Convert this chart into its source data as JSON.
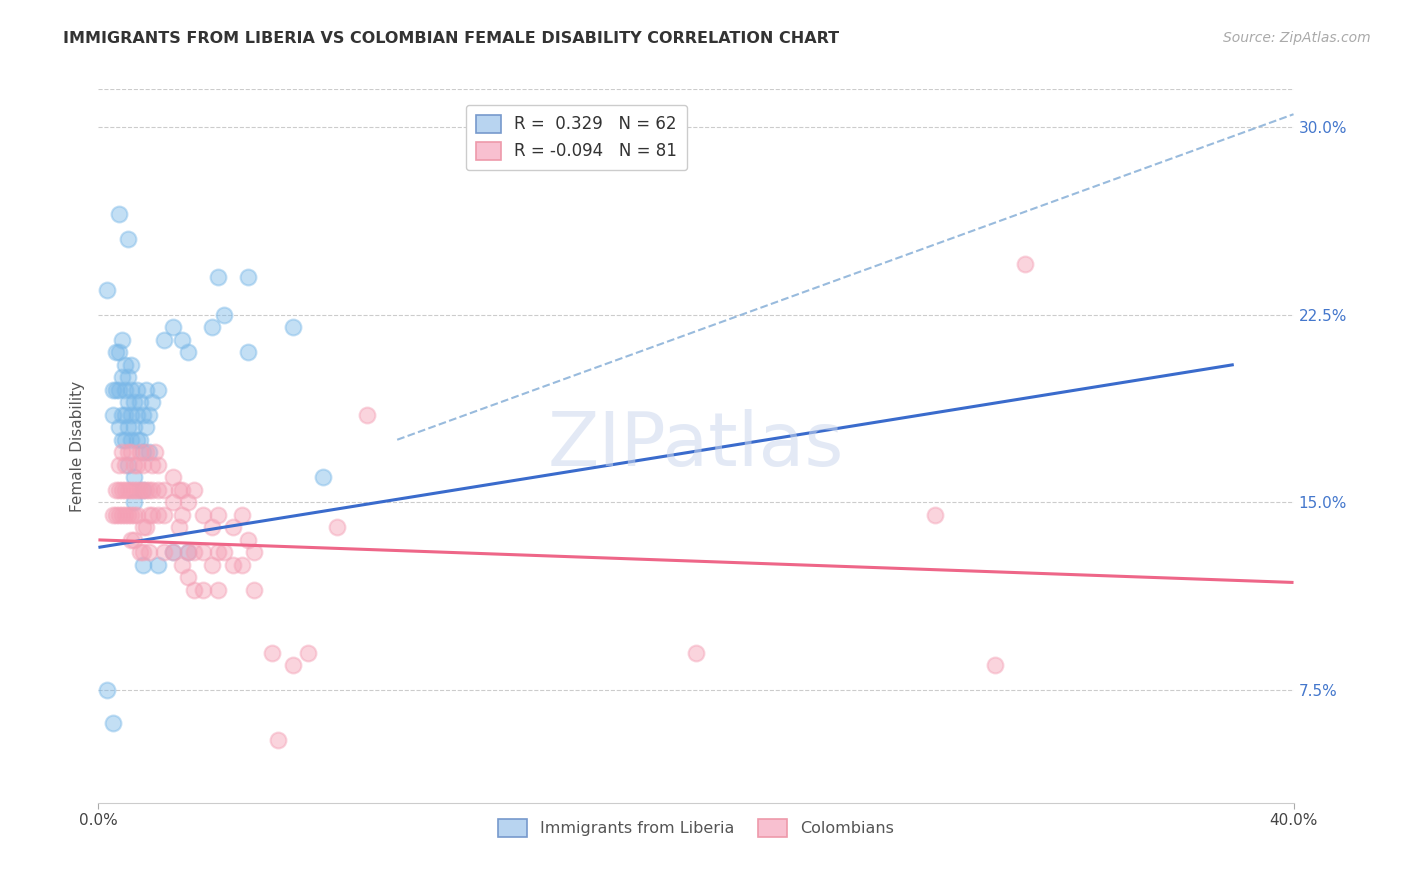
{
  "title": "IMMIGRANTS FROM LIBERIA VS COLOMBIAN FEMALE DISABILITY CORRELATION CHART",
  "source": "Source: ZipAtlas.com",
  "ylabel": "Female Disability",
  "right_yticks": [
    "30.0%",
    "22.5%",
    "15.0%",
    "7.5%"
  ],
  "right_ytick_vals": [
    0.3,
    0.225,
    0.15,
    0.075
  ],
  "xlim": [
    0.0,
    0.4
  ],
  "ylim": [
    0.03,
    0.315
  ],
  "color_blue": "#7ab8e8",
  "color_pink": "#f4a0b5",
  "trendline_blue": "#3a6bcc",
  "trendline_pink": "#ee6688",
  "trendline_dashed_color": "#99bbdd",
  "watermark": "ZIPatlas",
  "blue_trend_x": [
    0.0,
    0.38
  ],
  "blue_trend_y": [
    0.132,
    0.205
  ],
  "pink_trend_x": [
    0.0,
    0.4
  ],
  "pink_trend_y": [
    0.135,
    0.118
  ],
  "dashed_trend_x": [
    0.1,
    0.4
  ],
  "dashed_trend_y": [
    0.175,
    0.305
  ],
  "liberia_points": [
    [
      0.003,
      0.235
    ],
    [
      0.005,
      0.195
    ],
    [
      0.005,
      0.185
    ],
    [
      0.006,
      0.21
    ],
    [
      0.006,
      0.195
    ],
    [
      0.007,
      0.21
    ],
    [
      0.007,
      0.195
    ],
    [
      0.007,
      0.18
    ],
    [
      0.008,
      0.215
    ],
    [
      0.008,
      0.2
    ],
    [
      0.008,
      0.185
    ],
    [
      0.008,
      0.175
    ],
    [
      0.009,
      0.205
    ],
    [
      0.009,
      0.195
    ],
    [
      0.009,
      0.185
    ],
    [
      0.009,
      0.175
    ],
    [
      0.01,
      0.2
    ],
    [
      0.01,
      0.19
    ],
    [
      0.01,
      0.18
    ],
    [
      0.01,
      0.165
    ],
    [
      0.011,
      0.205
    ],
    [
      0.011,
      0.195
    ],
    [
      0.011,
      0.185
    ],
    [
      0.011,
      0.175
    ],
    [
      0.012,
      0.19
    ],
    [
      0.012,
      0.18
    ],
    [
      0.012,
      0.16
    ],
    [
      0.012,
      0.15
    ],
    [
      0.013,
      0.195
    ],
    [
      0.013,
      0.185
    ],
    [
      0.013,
      0.175
    ],
    [
      0.014,
      0.19
    ],
    [
      0.014,
      0.175
    ],
    [
      0.015,
      0.185
    ],
    [
      0.015,
      0.17
    ],
    [
      0.015,
      0.155
    ],
    [
      0.016,
      0.195
    ],
    [
      0.016,
      0.18
    ],
    [
      0.017,
      0.185
    ],
    [
      0.017,
      0.17
    ],
    [
      0.018,
      0.19
    ],
    [
      0.02,
      0.195
    ],
    [
      0.022,
      0.215
    ],
    [
      0.025,
      0.22
    ],
    [
      0.028,
      0.215
    ],
    [
      0.03,
      0.21
    ],
    [
      0.038,
      0.22
    ],
    [
      0.04,
      0.24
    ],
    [
      0.042,
      0.225
    ],
    [
      0.05,
      0.21
    ],
    [
      0.007,
      0.265
    ],
    [
      0.01,
      0.255
    ],
    [
      0.015,
      0.125
    ],
    [
      0.02,
      0.125
    ],
    [
      0.025,
      0.13
    ],
    [
      0.03,
      0.13
    ],
    [
      0.003,
      0.075
    ],
    [
      0.005,
      0.062
    ],
    [
      0.05,
      0.24
    ],
    [
      0.065,
      0.22
    ],
    [
      0.075,
      0.16
    ]
  ],
  "colombian_points": [
    [
      0.005,
      0.145
    ],
    [
      0.006,
      0.155
    ],
    [
      0.006,
      0.145
    ],
    [
      0.007,
      0.165
    ],
    [
      0.007,
      0.155
    ],
    [
      0.007,
      0.145
    ],
    [
      0.008,
      0.17
    ],
    [
      0.008,
      0.155
    ],
    [
      0.008,
      0.145
    ],
    [
      0.009,
      0.165
    ],
    [
      0.009,
      0.155
    ],
    [
      0.009,
      0.145
    ],
    [
      0.01,
      0.17
    ],
    [
      0.01,
      0.155
    ],
    [
      0.01,
      0.145
    ],
    [
      0.011,
      0.17
    ],
    [
      0.011,
      0.155
    ],
    [
      0.011,
      0.145
    ],
    [
      0.011,
      0.135
    ],
    [
      0.012,
      0.165
    ],
    [
      0.012,
      0.155
    ],
    [
      0.012,
      0.145
    ],
    [
      0.012,
      0.135
    ],
    [
      0.013,
      0.165
    ],
    [
      0.013,
      0.155
    ],
    [
      0.013,
      0.145
    ],
    [
      0.014,
      0.17
    ],
    [
      0.014,
      0.155
    ],
    [
      0.014,
      0.13
    ],
    [
      0.015,
      0.165
    ],
    [
      0.015,
      0.155
    ],
    [
      0.015,
      0.14
    ],
    [
      0.015,
      0.13
    ],
    [
      0.016,
      0.17
    ],
    [
      0.016,
      0.155
    ],
    [
      0.016,
      0.14
    ],
    [
      0.017,
      0.155
    ],
    [
      0.017,
      0.145
    ],
    [
      0.017,
      0.13
    ],
    [
      0.018,
      0.165
    ],
    [
      0.018,
      0.155
    ],
    [
      0.018,
      0.145
    ],
    [
      0.019,
      0.17
    ],
    [
      0.02,
      0.165
    ],
    [
      0.02,
      0.155
    ],
    [
      0.02,
      0.145
    ],
    [
      0.022,
      0.155
    ],
    [
      0.022,
      0.145
    ],
    [
      0.022,
      0.13
    ],
    [
      0.025,
      0.16
    ],
    [
      0.025,
      0.15
    ],
    [
      0.025,
      0.13
    ],
    [
      0.027,
      0.155
    ],
    [
      0.027,
      0.14
    ],
    [
      0.028,
      0.155
    ],
    [
      0.028,
      0.145
    ],
    [
      0.028,
      0.125
    ],
    [
      0.03,
      0.15
    ],
    [
      0.03,
      0.13
    ],
    [
      0.03,
      0.12
    ],
    [
      0.032,
      0.155
    ],
    [
      0.032,
      0.13
    ],
    [
      0.032,
      0.115
    ],
    [
      0.035,
      0.145
    ],
    [
      0.035,
      0.13
    ],
    [
      0.035,
      0.115
    ],
    [
      0.038,
      0.14
    ],
    [
      0.038,
      0.125
    ],
    [
      0.04,
      0.145
    ],
    [
      0.04,
      0.13
    ],
    [
      0.04,
      0.115
    ],
    [
      0.042,
      0.13
    ],
    [
      0.045,
      0.14
    ],
    [
      0.045,
      0.125
    ],
    [
      0.048,
      0.145
    ],
    [
      0.048,
      0.125
    ],
    [
      0.05,
      0.135
    ],
    [
      0.052,
      0.13
    ],
    [
      0.052,
      0.115
    ],
    [
      0.058,
      0.09
    ],
    [
      0.06,
      0.055
    ],
    [
      0.065,
      0.085
    ],
    [
      0.07,
      0.09
    ],
    [
      0.08,
      0.14
    ],
    [
      0.09,
      0.185
    ],
    [
      0.2,
      0.09
    ],
    [
      0.28,
      0.145
    ],
    [
      0.3,
      0.085
    ],
    [
      0.31,
      0.245
    ]
  ]
}
